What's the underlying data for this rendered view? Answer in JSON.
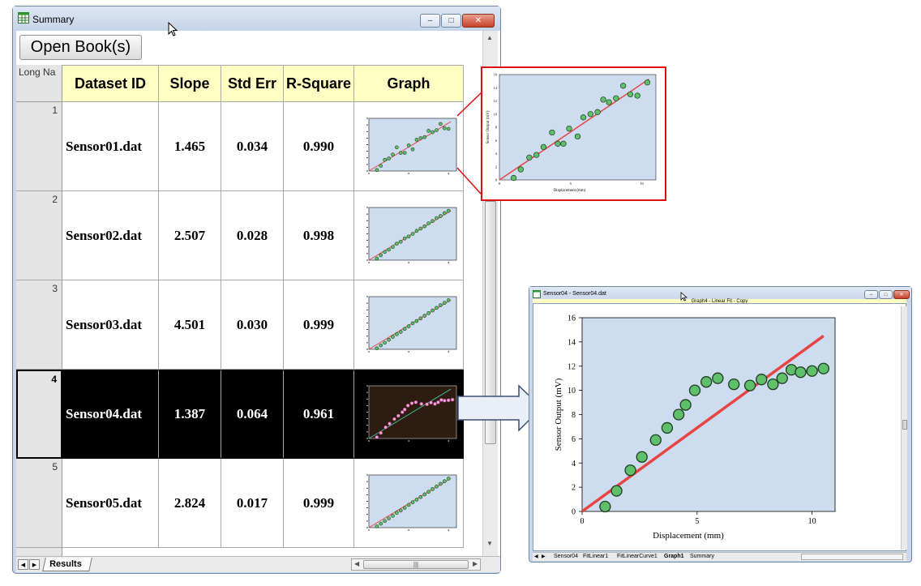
{
  "workbook_window": {
    "title": "Summary",
    "open_button": "Open Book(s)",
    "corner_label": "Long Na",
    "columns": [
      "Dataset ID",
      "Slope",
      "Std Err",
      "R-Square",
      "Graph"
    ],
    "rows": [
      {
        "index": "1",
        "dataset_id": "Sensor01.dat",
        "slope": "1.465",
        "std_err": "0.034",
        "r_square": "0.990"
      },
      {
        "index": "2",
        "dataset_id": "Sensor02.dat",
        "slope": "2.507",
        "std_err": "0.028",
        "r_square": "0.998"
      },
      {
        "index": "3",
        "dataset_id": "Sensor03.dat",
        "slope": "4.501",
        "std_err": "0.030",
        "r_square": "0.999"
      },
      {
        "index": "4",
        "dataset_id": "Sensor04.dat",
        "slope": "1.387",
        "std_err": "0.064",
        "r_square": "0.961"
      },
      {
        "index": "5",
        "dataset_id": "Sensor05.dat",
        "slope": "2.824",
        "std_err": "0.017",
        "r_square": "0.999"
      }
    ],
    "selected_row": "4",
    "sheet_tab": "Results"
  },
  "zoom_preview": {
    "xlabel": "Displacement (mm)",
    "ylabel": "Sensor Output (mV)",
    "x_ticks": [
      "0",
      "5",
      "10"
    ],
    "y_ticks": [
      "0",
      "2",
      "4",
      "6",
      "8",
      "10",
      "12",
      "14",
      "16"
    ]
  },
  "graph_window": {
    "title": "Sensor04 - Sensor04.dat",
    "subtitle": "Graph4 - Linear Fit - Copy",
    "tabs": [
      "Sensor04",
      "FitLinear1",
      "FitLinearCurve1",
      "Graph1",
      "Summary"
    ],
    "active_tab": "Graph1"
  },
  "colors": {
    "plot_bg": "#cddcee",
    "marker_fill": "#5fbf6b",
    "fit_line": "#e84444",
    "header_yellow": "#ffffc4",
    "callout_red": "#dd1111"
  },
  "chart_data": {
    "type": "scatter",
    "title": "",
    "xlabel": "Displacement (mm)",
    "ylabel": "Sensor Output (mV)",
    "xlim": [
      0,
      11
    ],
    "ylim": [
      0,
      16
    ],
    "x_ticks": [
      "0",
      "5",
      "10"
    ],
    "y_ticks": [
      "0",
      "2",
      "4",
      "6",
      "8",
      "10",
      "12",
      "14",
      "16"
    ],
    "series": [
      {
        "x": [
          1.0,
          1.5,
          2.1,
          2.6,
          3.2,
          3.7,
          4.2,
          4.5,
          4.9,
          5.4,
          5.9,
          6.6,
          7.3,
          7.8,
          8.3,
          8.7,
          9.1,
          9.5,
          10.0,
          10.5
        ],
        "y": [
          0.4,
          1.7,
          3.4,
          4.5,
          5.9,
          6.9,
          8.0,
          8.8,
          10.0,
          10.7,
          11.0,
          10.5,
          10.4,
          10.9,
          10.5,
          11.0,
          11.7,
          11.5,
          11.6,
          11.8
        ]
      }
    ],
    "fit_line": {
      "x": [
        0,
        10.5
      ],
      "y": [
        0,
        14.5
      ]
    }
  }
}
